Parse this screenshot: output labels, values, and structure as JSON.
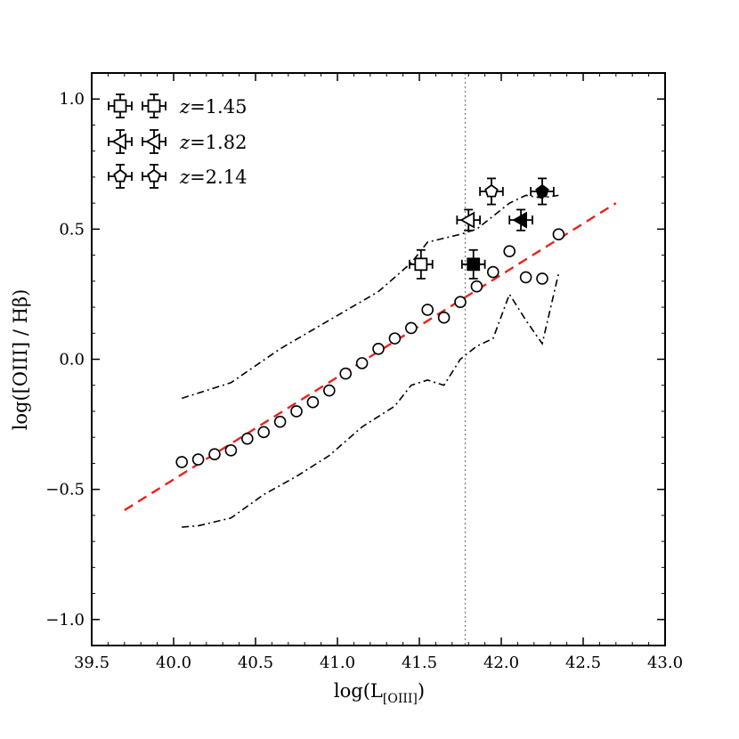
{
  "chart_data": {
    "type": "scatter",
    "xlabel": "log(L",
    "xlabel_sub": "[OIII]",
    "xlabel_close": ")",
    "ylabel": "log([OIII] / Hβ)",
    "xlim": [
      39.5,
      43.0
    ],
    "ylim": [
      -1.1,
      1.1
    ],
    "x_ticks": [
      39.5,
      40.0,
      40.5,
      41.0,
      41.5,
      42.0,
      42.5,
      43.0
    ],
    "x_tick_labels": [
      "39.5",
      "40.0",
      "40.5",
      "41.0",
      "41.5",
      "42.0",
      "42.5",
      "43.0"
    ],
    "y_ticks": [
      -1.0,
      -0.5,
      0.0,
      0.5,
      1.0
    ],
    "y_tick_labels": [
      "−1.0",
      "−0.5",
      "0.0",
      "0.5",
      "1.0"
    ],
    "vertical_line_x": 41.78,
    "open_circles": {
      "x": [
        40.05,
        40.15,
        40.25,
        40.35,
        40.45,
        40.55,
        40.65,
        40.75,
        40.85,
        40.95,
        41.05,
        41.15,
        41.25,
        41.35,
        41.45,
        41.55,
        41.65,
        41.75,
        41.85,
        41.95,
        42.05,
        42.15,
        42.25,
        42.35
      ],
      "y": [
        -0.395,
        -0.385,
        -0.365,
        -0.35,
        -0.305,
        -0.28,
        -0.24,
        -0.2,
        -0.165,
        -0.12,
        -0.055,
        -0.015,
        0.04,
        0.08,
        0.12,
        0.19,
        0.16,
        0.22,
        0.28,
        0.335,
        0.415,
        0.315,
        0.31,
        0.48
      ]
    },
    "fit_line": {
      "x": [
        39.7,
        42.7
      ],
      "y": [
        -0.58,
        0.6
      ],
      "color": "#e8231d"
    },
    "upper_envelope": {
      "x": [
        40.05,
        40.35,
        40.65,
        40.95,
        41.25,
        41.45,
        41.55,
        41.75,
        41.85,
        41.95,
        42.05,
        42.15,
        42.25,
        42.35
      ],
      "y": [
        -0.15,
        -0.09,
        0.04,
        0.15,
        0.26,
        0.37,
        0.45,
        0.48,
        0.5,
        0.55,
        0.6,
        0.63,
        0.62,
        0.63
      ]
    },
    "lower_envelope": {
      "x": [
        40.05,
        40.15,
        40.35,
        40.55,
        40.75,
        40.95,
        41.15,
        41.35,
        41.45,
        41.55,
        41.65,
        41.75,
        41.85,
        41.95,
        42.05,
        42.15,
        42.25,
        42.35
      ],
      "y": [
        -0.645,
        -0.64,
        -0.61,
        -0.52,
        -0.45,
        -0.37,
        -0.26,
        -0.18,
        -0.1,
        -0.08,
        -0.1,
        0.0,
        0.05,
        0.08,
        0.25,
        0.15,
        0.06,
        0.33
      ]
    },
    "highlighted_points": [
      {
        "marker": "square",
        "filled": false,
        "x": 41.51,
        "y": 0.365,
        "xerr": 0.07,
        "yerr": 0.055,
        "series": "z=1.45"
      },
      {
        "marker": "square",
        "filled": true,
        "x": 41.83,
        "y": 0.365,
        "xerr": 0.07,
        "yerr": 0.055,
        "series": "z=1.45"
      },
      {
        "marker": "triangle-left",
        "filled": false,
        "x": 41.8,
        "y": 0.535,
        "xerr": 0.07,
        "yerr": 0.04,
        "series": "z=1.82"
      },
      {
        "marker": "triangle-left",
        "filled": true,
        "x": 42.12,
        "y": 0.535,
        "xerr": 0.07,
        "yerr": 0.04,
        "series": "z=1.82"
      },
      {
        "marker": "pentagon",
        "filled": false,
        "x": 41.94,
        "y": 0.645,
        "xerr": 0.07,
        "yerr": 0.05,
        "series": "z=2.14"
      },
      {
        "marker": "pentagon",
        "filled": true,
        "x": 42.25,
        "y": 0.645,
        "xerr": 0.07,
        "yerr": 0.05,
        "series": "z=2.14"
      }
    ],
    "legend": {
      "location": "top-left",
      "entries": [
        {
          "marker": "square",
          "z_symbol": "z",
          "value": "=1.45"
        },
        {
          "marker": "triangle-left",
          "z_symbol": "z",
          "value": "=1.82"
        },
        {
          "marker": "pentagon",
          "z_symbol": "z",
          "value": "=2.14"
        }
      ]
    }
  }
}
